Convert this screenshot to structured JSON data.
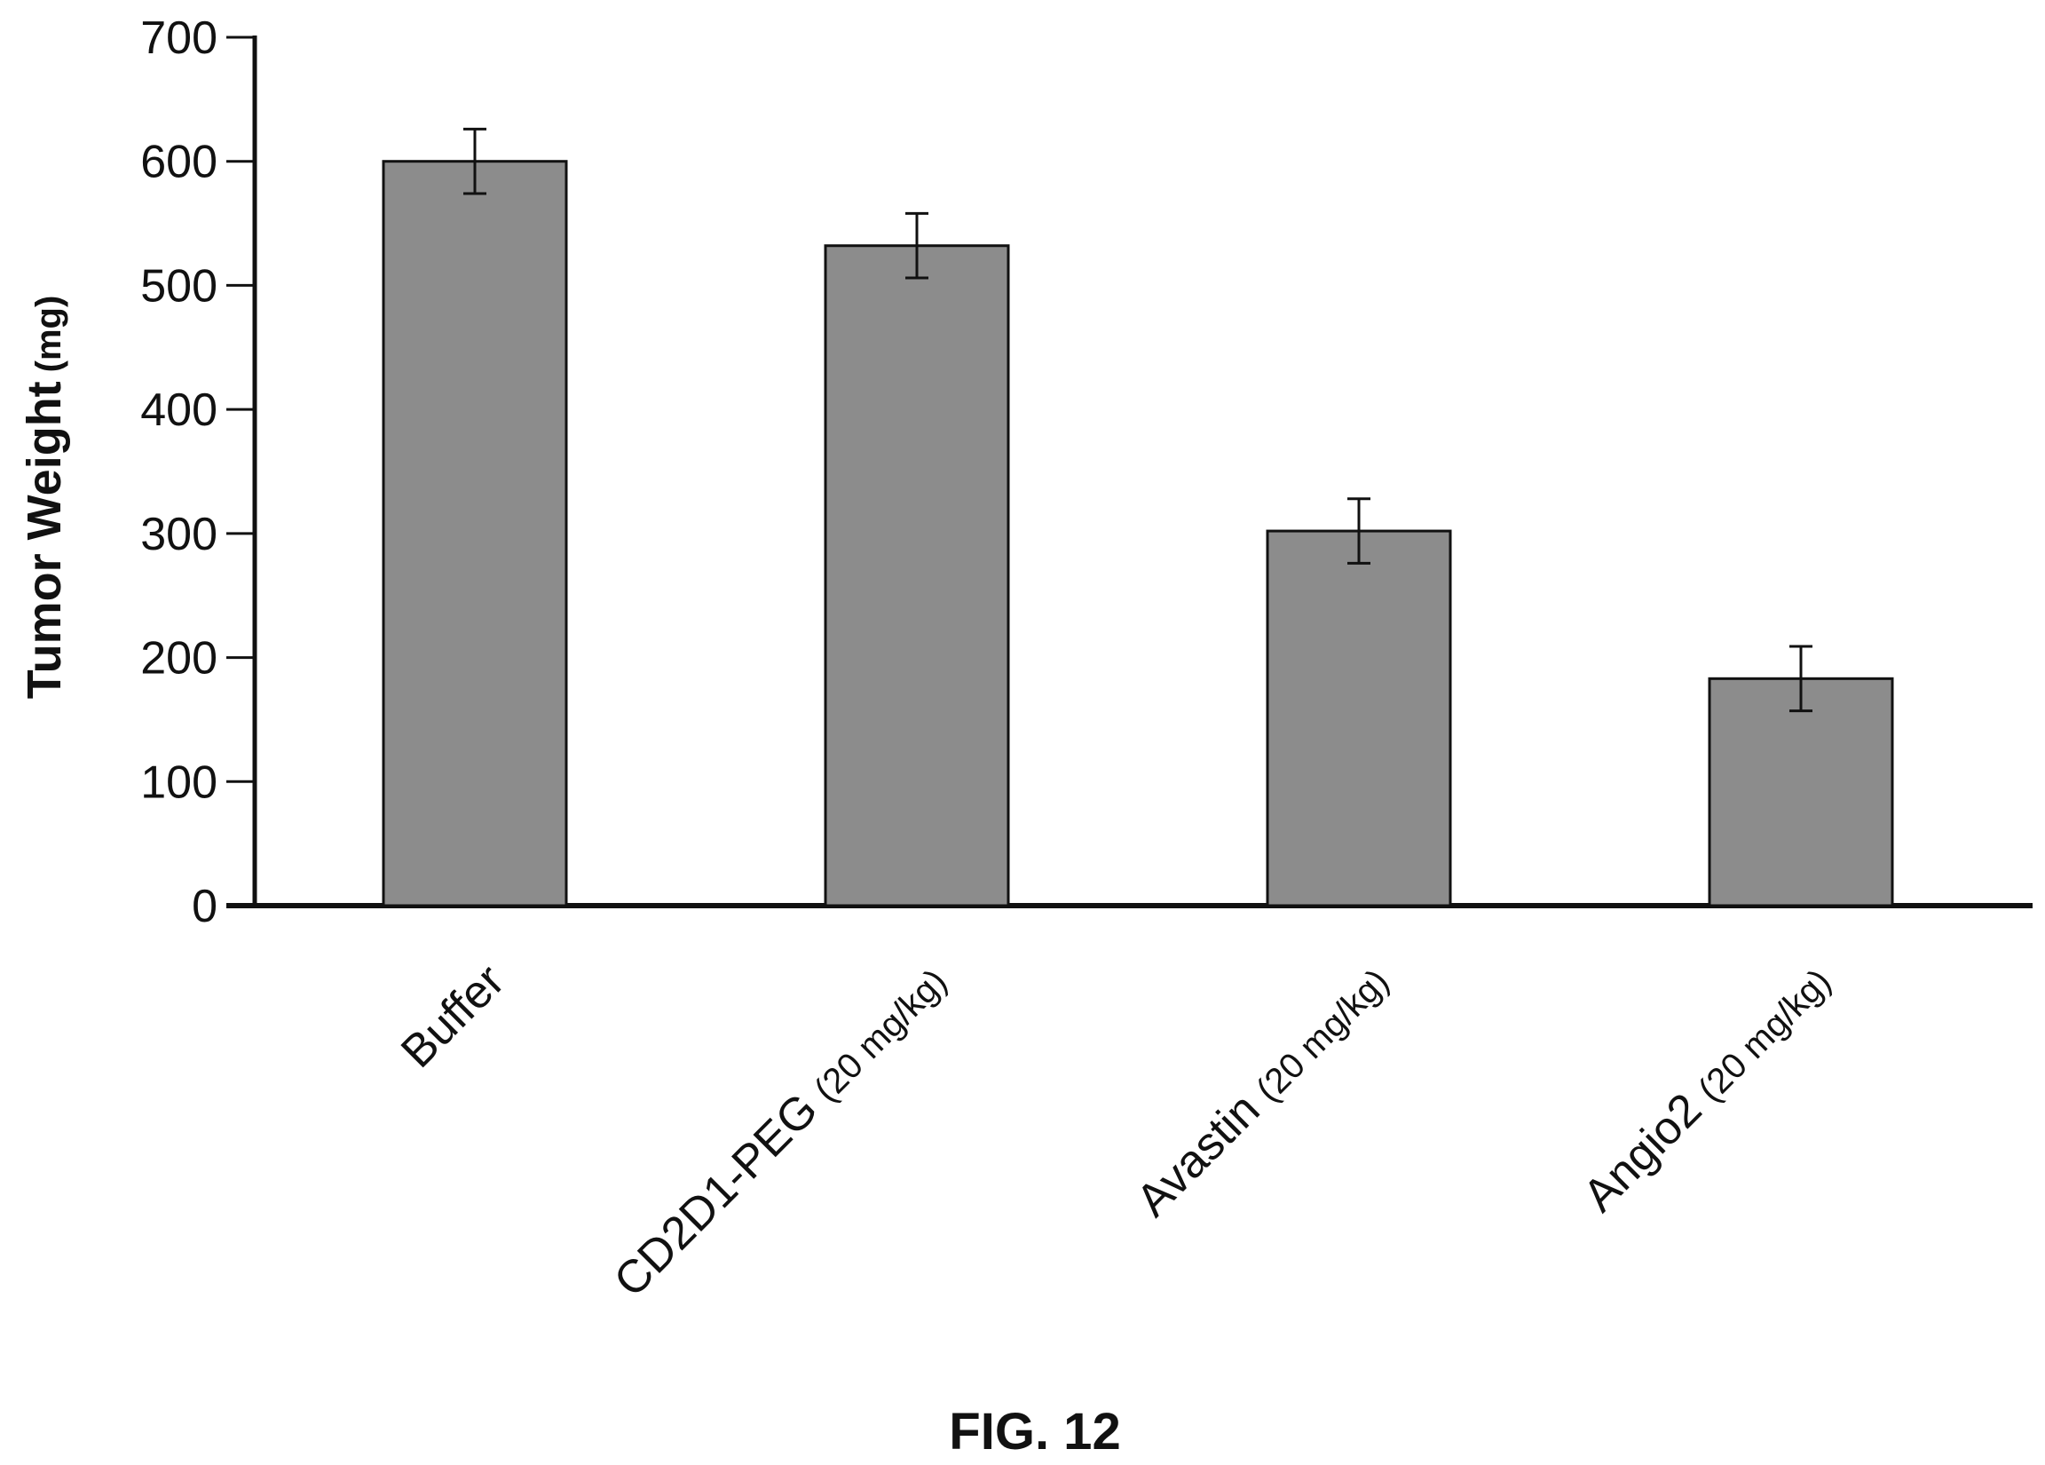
{
  "figure": {
    "caption": "FIG. 12"
  },
  "chart_data": {
    "type": "bar",
    "categories": [
      {
        "name": "Buffer",
        "dose": ""
      },
      {
        "name": "CD2D1-PEG",
        "dose": "(20 mg/kg)"
      },
      {
        "name": "Avastin",
        "dose": "(20 mg/kg)"
      },
      {
        "name": "Angio2",
        "dose": "(20 mg/kg)"
      }
    ],
    "values": [
      600,
      532,
      302,
      183
    ],
    "error": [
      26,
      26,
      26,
      26
    ],
    "ylabel": "Tumor Weight",
    "ylabel_unit": "(mg)",
    "xlabel": "",
    "ylim": [
      0,
      700
    ],
    "yticks": [
      0,
      100,
      200,
      300,
      400,
      500,
      600,
      700
    ],
    "grid": false,
    "legend": "none",
    "colors": {
      "bar_fill": "#8c8c8c",
      "bar_stroke": "#111111",
      "axis": "#111111"
    }
  }
}
